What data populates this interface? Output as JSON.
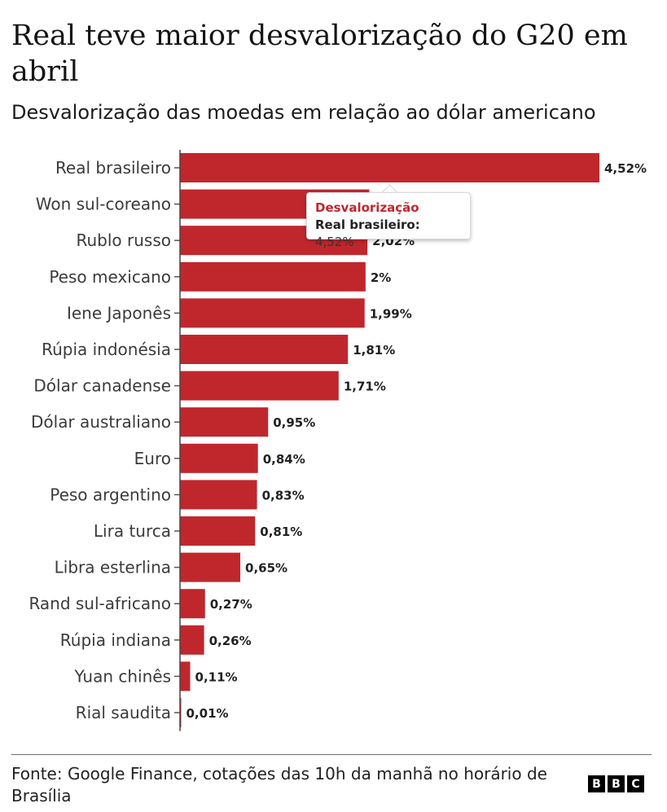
{
  "chart_data": {
    "type": "bar",
    "orientation": "horizontal",
    "title": "Real teve maior desvalorização do G20 em abril",
    "subtitle": "Desvalorização das moedas em relação ao dólar americano",
    "categories": [
      "Real brasileiro",
      "Won sul-coreano",
      "Rublo russo",
      "Peso mexicano",
      "Iene Japonês",
      "Rúpia indonésia",
      "Dólar canadense",
      "Dólar australiano",
      "Euro",
      "Peso argentino",
      "Lira turca",
      "Libra esterlina",
      "Rand sul-africano",
      "Rúpia indiana",
      "Yuan chinês",
      "Rial saudita"
    ],
    "values": [
      4.52,
      2.04,
      2.02,
      2.0,
      1.99,
      1.81,
      1.71,
      0.95,
      0.84,
      0.83,
      0.81,
      0.65,
      0.27,
      0.26,
      0.11,
      0.01
    ],
    "value_labels": [
      "4,52%",
      "",
      "2,02%",
      "2%",
      "1,99%",
      "1,81%",
      "1,71%",
      "0,95%",
      "0,84%",
      "0,83%",
      "0,81%",
      "0,65%",
      "0,27%",
      "0,26%",
      "0,11%",
      "0,01%"
    ],
    "xlim": [
      0,
      4.52
    ],
    "bar_color": "#c0272d",
    "grid": false
  },
  "tooltip": {
    "heading": "Desvalorização",
    "key": "Real brasileiro:",
    "value": "4,52%"
  },
  "footer": {
    "source": "Fonte: Google Finance, cotações das 10h da manhã no horário de Brasília",
    "logo_letters": [
      "B",
      "B",
      "C"
    ]
  }
}
